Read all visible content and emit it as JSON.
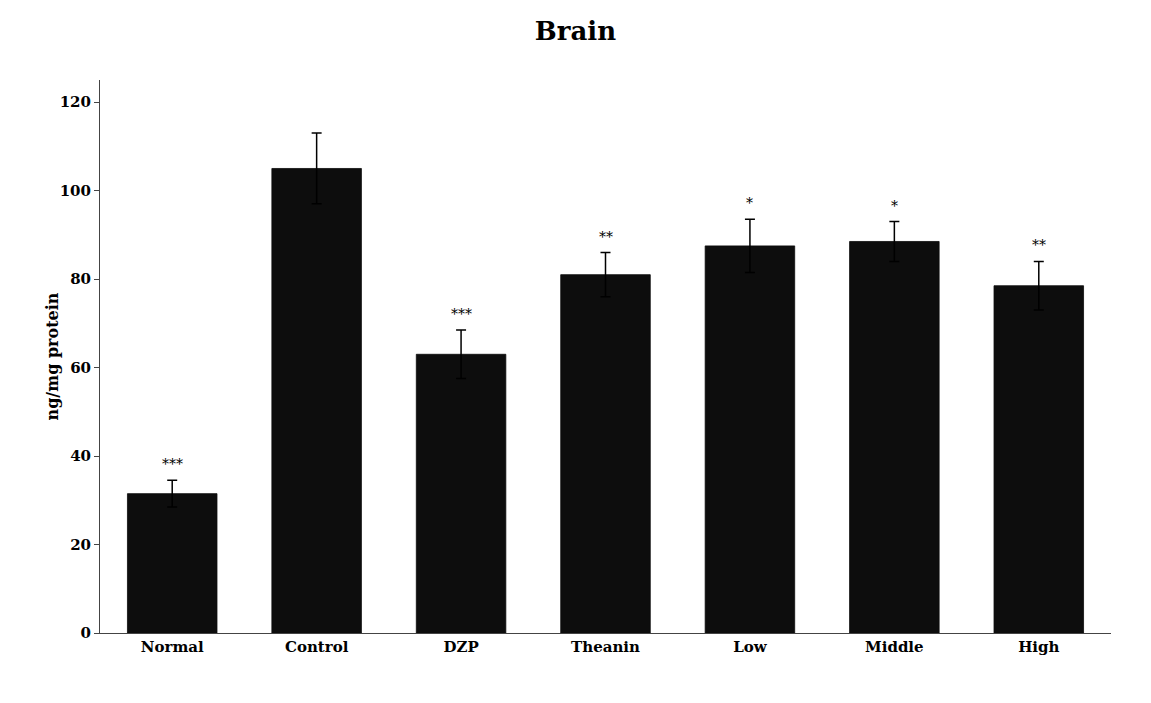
{
  "chart_data": {
    "type": "bar",
    "title": "Brain",
    "ylabel": "ng/mg protein",
    "categories": [
      "Normal",
      "Control",
      "DZP",
      "Theanin",
      "Low",
      "Middle",
      "High"
    ],
    "values": [
      31.5,
      105.0,
      63.0,
      81.0,
      87.5,
      88.5,
      78.5
    ],
    "errors": [
      3.0,
      8.0,
      5.5,
      5.0,
      6.0,
      4.5,
      5.5
    ],
    "significance": [
      "***",
      null,
      "***",
      "**",
      "*",
      "*",
      "**"
    ],
    "color": "#0d0d0d",
    "ylim": [
      0,
      125
    ],
    "yticks": [
      0,
      20,
      40,
      60,
      80,
      100,
      120
    ],
    "grid": false
  }
}
